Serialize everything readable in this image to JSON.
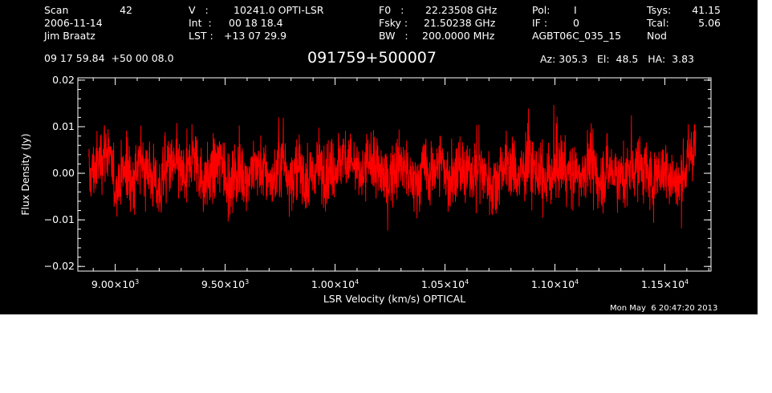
{
  "header": {
    "col1": {
      "scan_label": "Scan",
      "scan_value": "42",
      "date": "2006-11-14",
      "observer": "Jim Braatz",
      "coords": "09 17 59.84  +50 00 08.0"
    },
    "col2": {
      "v_label": "V   :",
      "v_value": "10241.0 OPTI-LSR",
      "int_label": "Int  :",
      "int_value": "00 18 18.4",
      "lst_label": "LST :",
      "lst_value": "+13 07 29.9"
    },
    "col3": {
      "f0_label": "F0   :",
      "f0_value": "22.23508 GHz",
      "fsky_label": "Fsky :",
      "fsky_value": "21.50238 GHz",
      "bw_label": "BW   :",
      "bw_value": "200.0000 MHz"
    },
    "col4": {
      "pol_label": "Pol:",
      "pol_value": "I",
      "if_label": "IF :",
      "if_value": "0",
      "project": "AGBT06C_035_15"
    },
    "col5": {
      "tsys_label": "Tsys:",
      "tsys_value": "41.15",
      "tcal_label": "Tcal:",
      "tcal_value": "5.06",
      "mode": "Nod"
    },
    "source_name": "091759+500007",
    "az_el_ha": "Az: 305.3   El:  48.5   HA:  3.83",
    "timestamp": "Mon May  6 20:47:20 2013"
  },
  "colors": {
    "background": "#000000",
    "axes": "#ffffff",
    "trace": "#ff0000"
  },
  "chart_data": {
    "type": "line",
    "title": "091759+500007",
    "xlabel": "LSR Velocity (km/s) OPTICAL",
    "ylabel": "Flux Density (Jy)",
    "xlim": [
      8830,
      11710
    ],
    "ylim": [
      -0.021,
      0.0205
    ],
    "x_ticks": [
      9000,
      9500,
      10000,
      10500,
      11000,
      11500
    ],
    "x_tick_labels": [
      {
        "mantissa": "9.00×10",
        "exp": "3"
      },
      {
        "mantissa": "9.50×10",
        "exp": "3"
      },
      {
        "mantissa": "1.00×10",
        "exp": "4"
      },
      {
        "mantissa": "1.05×10",
        "exp": "4"
      },
      {
        "mantissa": "1.10×10",
        "exp": "4"
      },
      {
        "mantissa": "1.15×10",
        "exp": "4"
      }
    ],
    "y_ticks": [
      -0.02,
      -0.01,
      0.0,
      0.01,
      0.02
    ],
    "y_tick_labels": [
      "−0.02",
      "−0.01",
      "0.00",
      "0.01",
      "0.02"
    ],
    "grid": false,
    "series": [
      {
        "x": [
          8880,
          8920,
          8960,
          9000,
          9040,
          9080,
          9120,
          9160,
          9200,
          9240,
          9280,
          9320,
          9360,
          9400,
          9440,
          9480,
          9520,
          9560,
          9600,
          9640,
          9680,
          9720,
          9760,
          9800,
          9840,
          9880,
          9920,
          9960,
          10000,
          10040,
          10080,
          10120,
          10160,
          10200,
          10240,
          10280,
          10320,
          10360,
          10400,
          10440,
          10480,
          10520,
          10560,
          10600,
          10640,
          10680,
          10720,
          10760,
          10800,
          10840,
          10880,
          10920,
          10960,
          11000,
          11040,
          11080,
          11120,
          11160,
          11200,
          11240,
          11280,
          11320,
          11360,
          11400,
          11440,
          11480,
          11520,
          11560,
          11600,
          11640
        ],
        "y": [
          -0.001,
          0.002,
          0.006,
          -0.003,
          0.001,
          -0.002,
          0.003,
          0.0,
          -0.004,
          0.002,
          0.001,
          -0.001,
          0.004,
          -0.002,
          0.0,
          0.003,
          -0.003,
          0.001,
          -0.001,
          0.002,
          0.0,
          -0.002,
          0.003,
          -0.001,
          0.001,
          -0.003,
          0.002,
          0.0,
          0.001,
          0.004,
          0.002,
          -0.001,
          0.003,
          0.0,
          -0.002,
          0.002,
          0.001,
          -0.003,
          0.001,
          0.0,
          0.003,
          -0.002,
          0.001,
          -0.001,
          0.002,
          0.0,
          -0.003,
          0.002,
          0.001,
          -0.001,
          0.003,
          0.0,
          -0.002,
          0.001,
          0.002,
          -0.001,
          0.0,
          0.003,
          -0.002,
          0.001,
          0.0,
          -0.001,
          0.002,
          0.001,
          -0.002,
          0.001,
          0.0,
          -0.003,
          0.002,
          0.006
        ],
        "noise_rms": 0.004
      }
    ]
  }
}
